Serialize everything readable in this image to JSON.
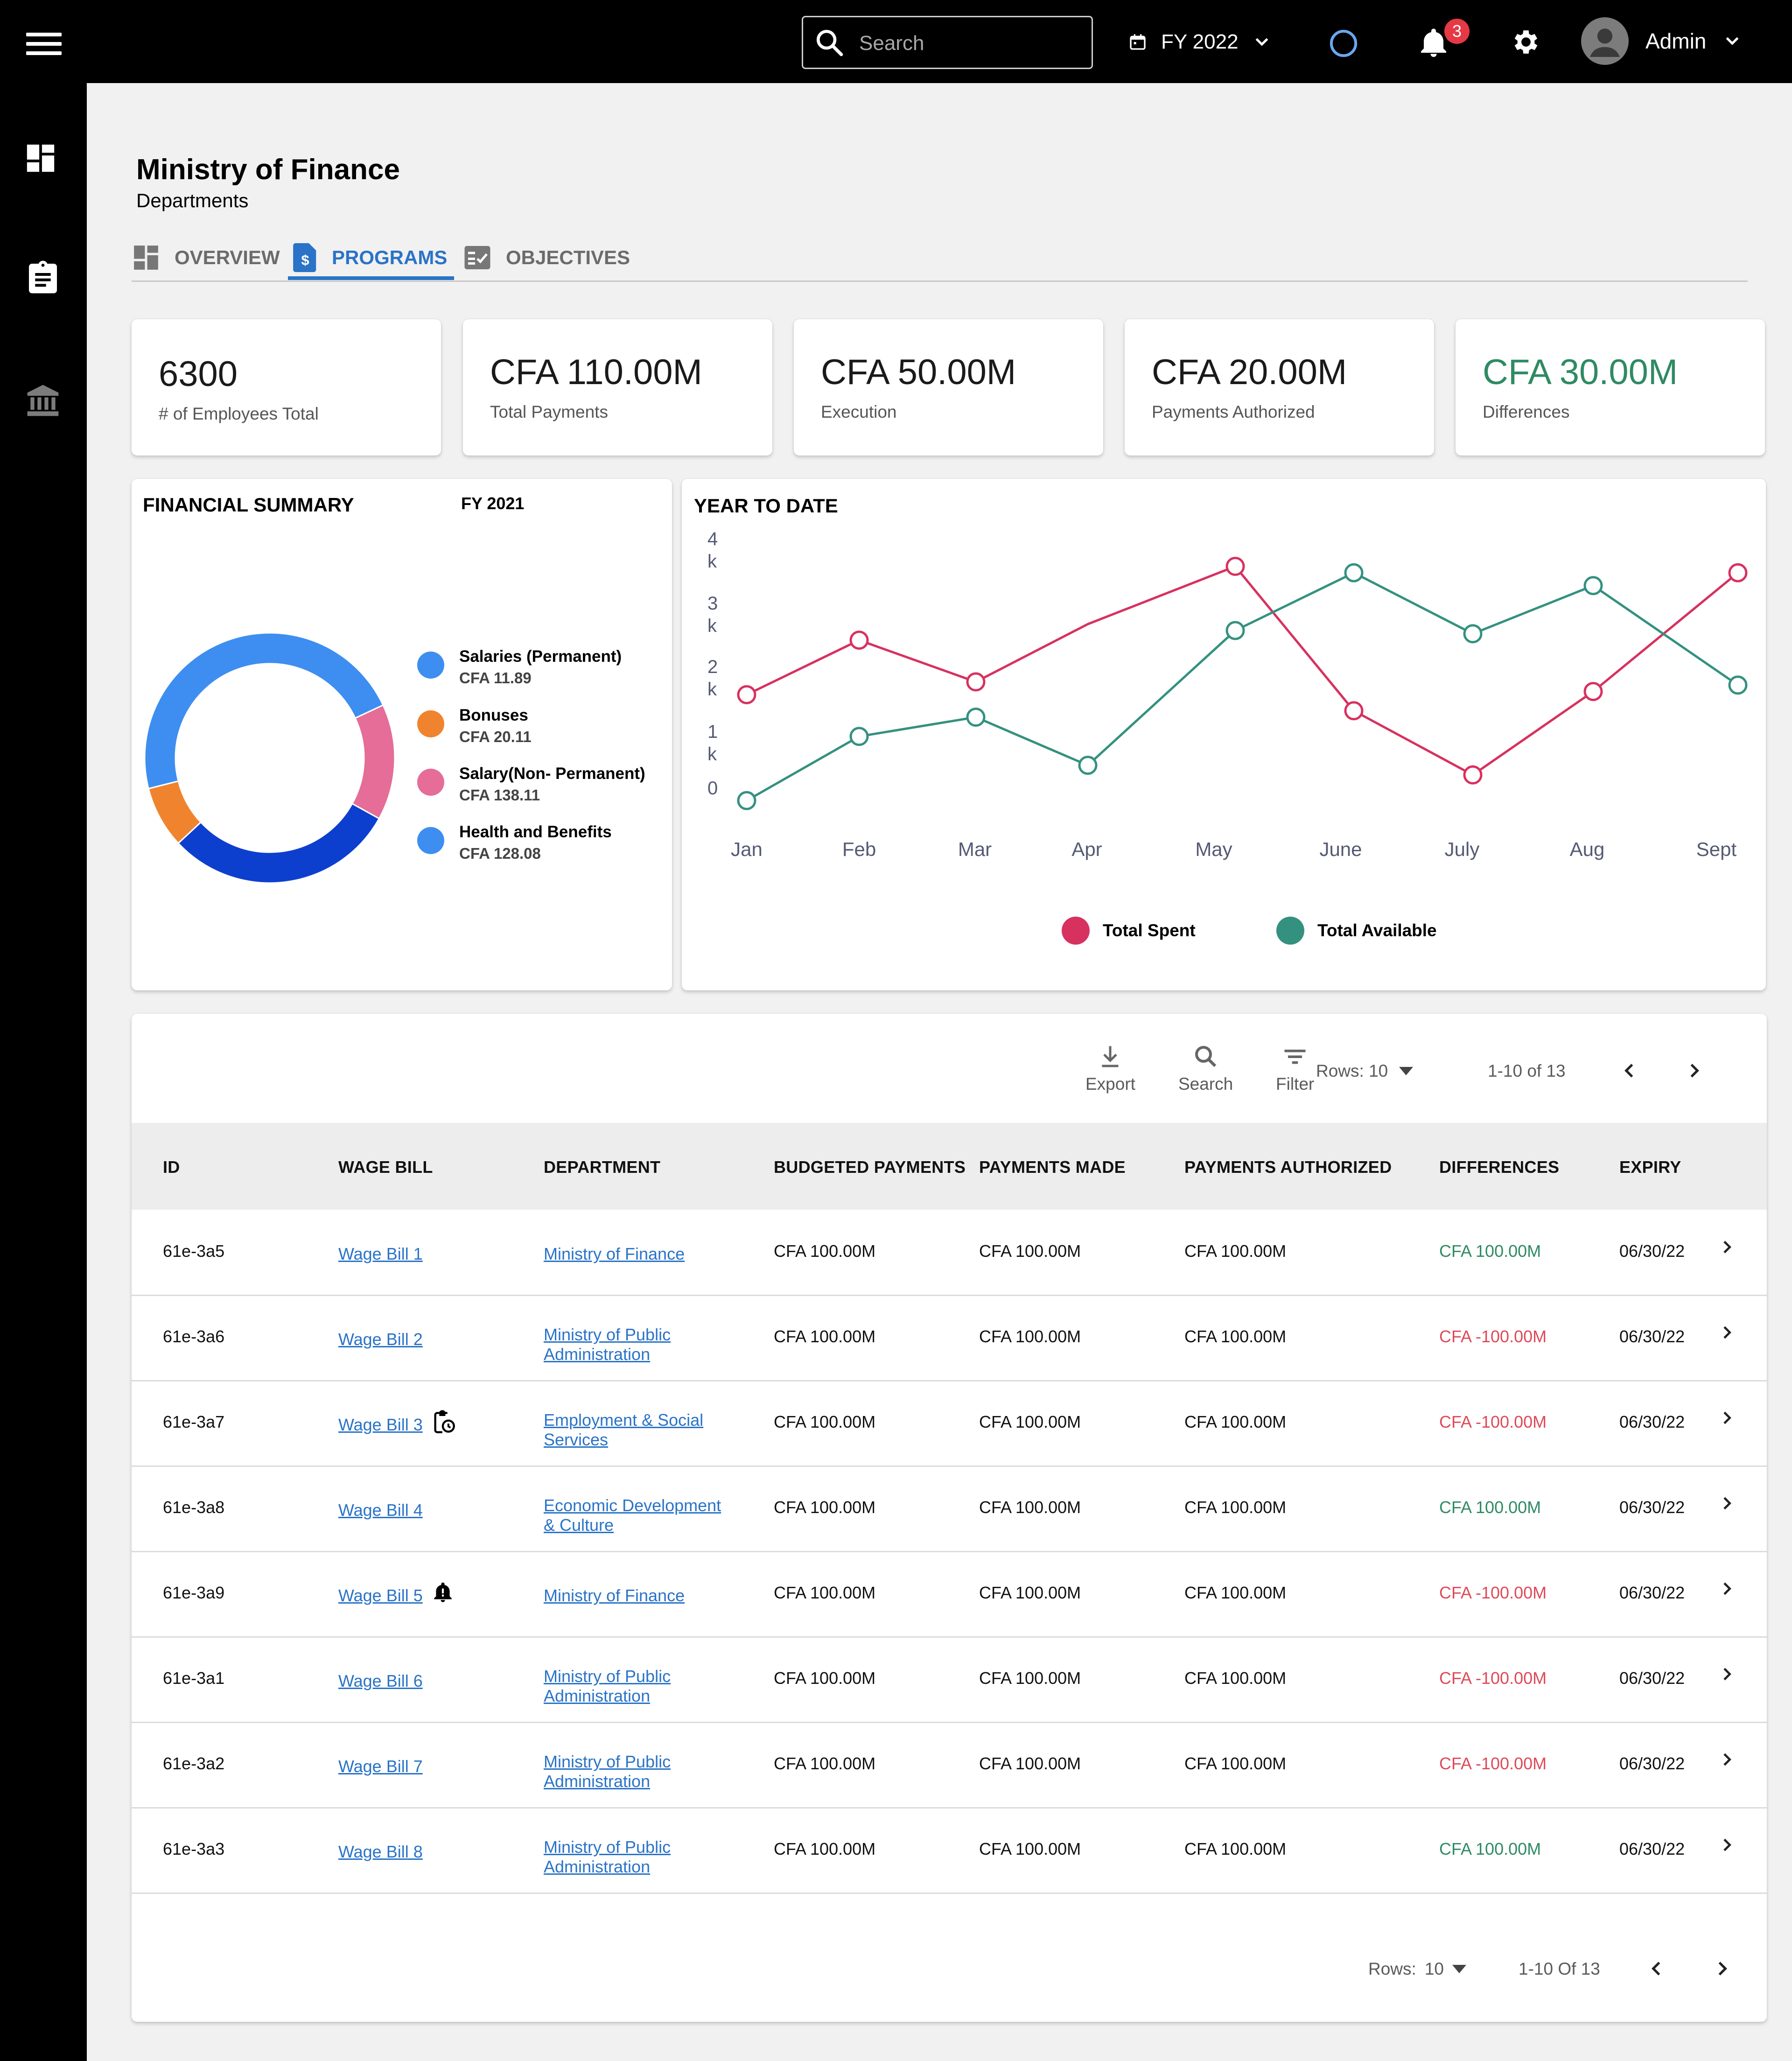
{
  "header": {
    "search_placeholder": "Search",
    "fiscal_year": "FY 2022",
    "notification_count": "3",
    "user_name": "Admin"
  },
  "page": {
    "title": "Ministry of Finance",
    "subtitle": "Departments"
  },
  "tabs": [
    {
      "label": "OVERVIEW",
      "icon": "dashboard-icon"
    },
    {
      "label": "PROGRAMS",
      "icon": "dollar-document-icon",
      "active": true
    },
    {
      "label": "OBJECTIVES",
      "icon": "checklist-icon"
    }
  ],
  "stats": [
    {
      "value": "6300",
      "label": "# of Employees Total"
    },
    {
      "value": "CFA 110.00M",
      "label": "Total Payments"
    },
    {
      "value": "CFA 50.00M",
      "label": "Execution"
    },
    {
      "value": "CFA 20.00M",
      "label": "Payments Authorized"
    },
    {
      "value": "CFA 30.00M",
      "label": "Differences",
      "color": "#2f8a63"
    }
  ],
  "financial_summary": {
    "title": "FINANCIAL SUMMARY",
    "year": "FY 2021",
    "legend": [
      {
        "name": "Salaries (Permanent)",
        "value": "CFA 11.89",
        "color": "#3d8ef0"
      },
      {
        "name": "Bonuses",
        "value": "CFA 20.11",
        "color": "#f0842e"
      },
      {
        "name": "Salary(Non- Permanent)",
        "value": "CFA 138.11",
        "color": "#e56d97"
      },
      {
        "name": "Health and Benefits",
        "value": "CFA 128.08",
        "color": "#3d8ef0"
      }
    ]
  },
  "year_to_date": {
    "title": "YEAR TO DATE",
    "legend": [
      {
        "name": "Total Spent",
        "color": "#d7315f"
      },
      {
        "name": "Total Available",
        "color": "#34917f"
      }
    ]
  },
  "chart_data": [
    {
      "type": "pie",
      "title": "FINANCIAL SUMMARY",
      "categories": [
        "Pink segment",
        "Dark blue segment",
        "Orange segment",
        "Blue segment"
      ],
      "values": [
        15,
        30,
        8,
        47
      ],
      "colors": [
        "#e56d97",
        "#0d3fcf",
        "#f0842e",
        "#3d8ef0"
      ],
      "donut": true
    },
    {
      "type": "line",
      "title": "YEAR TO DATE",
      "categories": [
        "Jan",
        "Feb",
        "Mar",
        "Apr",
        "May",
        "June",
        "July",
        "Aug",
        "Sept"
      ],
      "series": [
        {
          "name": "Total Spent",
          "values": [
            1800,
            2650,
            2000,
            2900,
            3800,
            1550,
            550,
            1850,
            3700
          ],
          "color": "#d7315f"
        },
        {
          "name": "Total Available",
          "values": [
            150,
            1150,
            1450,
            700,
            2800,
            3700,
            2750,
            3500,
            1950
          ],
          "color": "#34917f"
        }
      ],
      "ylim": [
        0,
        4000
      ],
      "yticks": [
        "0",
        "1 k",
        "2 k",
        "3 k",
        "4 k"
      ],
      "grid": false,
      "legend_position": "bottom"
    }
  ],
  "table_toolbar": {
    "export": "Export",
    "search": "Search",
    "filter": "Filter",
    "rows_label": "Rows: 10",
    "range": "1-10 of 13"
  },
  "table": {
    "columns": [
      "ID",
      "WAGE BILL",
      "DEPARTMENT",
      "BUDGETED PAYMENTS",
      "PAYMENTS MADE",
      "PAYMENTS AUTHORIZED",
      "DIFFERENCES",
      "EXPIRY"
    ],
    "rows": [
      {
        "id": "61e-3a5",
        "wage_bill": "Wage Bill 1",
        "department": "Ministry of Finance",
        "budgeted": "CFA 100.00M",
        "made": "CFA 100.00M",
        "authorized": "CFA 100.00M",
        "difference": "CFA 100.00M",
        "expiry": "06/30/22",
        "status": "pos"
      },
      {
        "id": "61e-3a6",
        "wage_bill": "Wage Bill 2",
        "department": "Ministry of Public Administration",
        "budgeted": "CFA 100.00M",
        "made": "CFA 100.00M",
        "authorized": "CFA 100.00M",
        "difference": "CFA -100.00M",
        "expiry": "06/30/22",
        "status": "neg"
      },
      {
        "id": "61e-3a7",
        "wage_bill": "Wage Bill 3",
        "department": "Employment & Social Services",
        "budgeted": "CFA 100.00M",
        "made": "CFA 100.00M",
        "authorized": "CFA 100.00M",
        "difference": "CFA -100.00M",
        "expiry": "06/30/22",
        "status": "neg",
        "icon": "clipboard-clock-icon"
      },
      {
        "id": "61e-3a8",
        "wage_bill": "Wage Bill 4",
        "department": "Economic Development & Culture",
        "budgeted": "CFA 100.00M",
        "made": "CFA 100.00M",
        "authorized": "CFA 100.00M",
        "difference": "CFA 100.00M",
        "expiry": "06/30/22",
        "status": "pos"
      },
      {
        "id": "61e-3a9",
        "wage_bill": "Wage Bill 5",
        "department": "Ministry of Finance",
        "budgeted": "CFA 100.00M",
        "made": "CFA 100.00M",
        "authorized": "CFA 100.00M",
        "difference": "CFA -100.00M",
        "expiry": "06/30/22",
        "status": "neg",
        "icon": "bell-alert-icon"
      },
      {
        "id": "61e-3a1",
        "wage_bill": "Wage Bill 6",
        "department": "Ministry of Public Administration",
        "budgeted": "CFA 100.00M",
        "made": "CFA 100.00M",
        "authorized": "CFA 100.00M",
        "difference": "CFA -100.00M",
        "expiry": "06/30/22",
        "status": "neg"
      },
      {
        "id": "61e-3a2",
        "wage_bill": "Wage Bill 7",
        "department": "Ministry of Public Administration",
        "budgeted": "CFA 100.00M",
        "made": "CFA 100.00M",
        "authorized": "CFA 100.00M",
        "difference": "CFA -100.00M",
        "expiry": "06/30/22",
        "status": "neg"
      },
      {
        "id": "61e-3a3",
        "wage_bill": "Wage Bill 8",
        "department": "Ministry of Public Administration",
        "budgeted": "CFA 100.00M",
        "made": "CFA 100.00M",
        "authorized": "CFA 100.00M",
        "difference": "CFA 100.00M",
        "expiry": "06/30/22",
        "status": "pos"
      }
    ]
  },
  "footer_pager": {
    "rows_label": "Rows:",
    "rows_value": "10",
    "range": "1-10 Of 13"
  }
}
